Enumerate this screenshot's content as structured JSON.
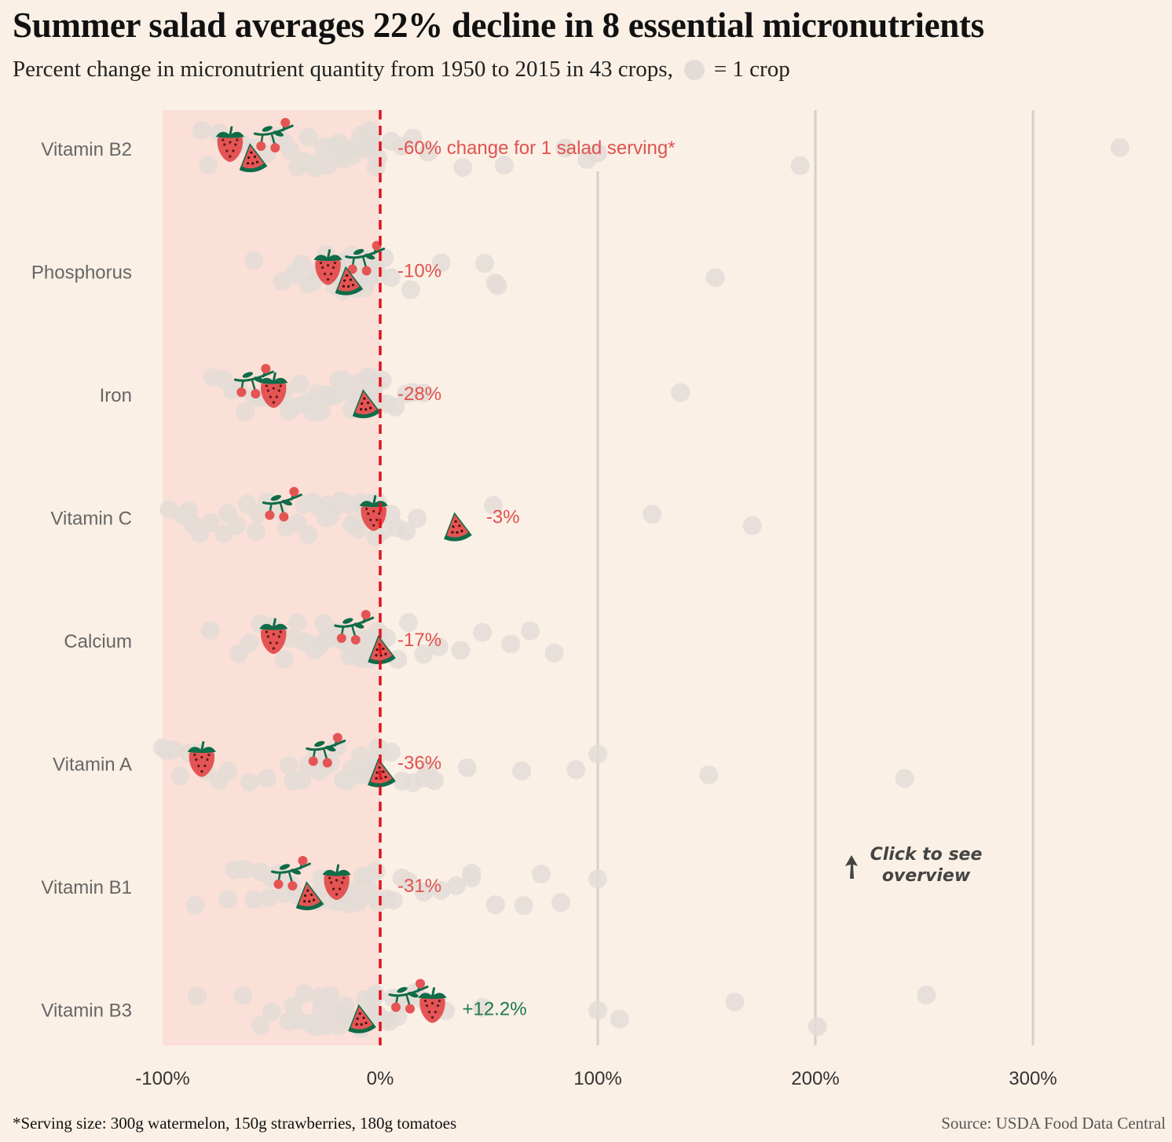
{
  "title": "Summer salad averages 22% decline in 8 essential micronutrients",
  "subtitle": {
    "text": "Percent change in micronutrient quantity from 1950 to 2015 in 43 crops,",
    "legend_text": "= 1 crop"
  },
  "footnote": "*Serving size: 300g watermelon, 150g strawberries, 180g tomatoes",
  "source": "Source: USDA Food Data Central",
  "hint": "Click to see overview",
  "colors": {
    "background": "#faf0e6",
    "decline_band": "#fbe0d8",
    "crop_dot": "#e3dcd6",
    "grid": "#d6d0ca",
    "zero_line": "#e0141e",
    "negative_label": "#e0524f",
    "positive_label": "#1a7a50",
    "strawberry": "#e55454",
    "leaf": "#0f6b48"
  },
  "chart_data": {
    "type": "scatter",
    "xlim": [
      -100,
      350
    ],
    "x_ticks": [
      -100,
      0,
      100,
      200,
      300
    ],
    "x_tick_labels": [
      "-100%",
      "0%",
      "100%",
      "200%",
      "300%"
    ],
    "zero_line": 0,
    "shaded_range": [
      -100,
      0
    ],
    "rows": [
      {
        "nutrient": "Vitamin B2",
        "salad_change": -60,
        "label": "-60% change for 1 salad serving*",
        "watermelon": -59,
        "strawberry": -69,
        "tomato": -49,
        "crops": [
          -82,
          -79,
          -74,
          -69,
          -63,
          -57,
          -52,
          -47,
          -44,
          -41,
          -38,
          -35,
          -33,
          -30,
          -28,
          -26,
          -24,
          -22,
          -20,
          -19,
          -17,
          -15,
          -13,
          -11,
          -9,
          -7,
          -6,
          -5,
          -4,
          -3,
          -2,
          -1,
          5,
          10,
          15,
          22,
          38,
          57,
          85,
          95,
          100,
          193,
          340
        ]
      },
      {
        "nutrient": "Phosphorus",
        "salad_change": -10,
        "label": "-10%",
        "watermelon": -15,
        "strawberry": -24,
        "tomato": -7,
        "crops": [
          -58,
          -45,
          -40,
          -38,
          -36,
          -33,
          -31,
          -29,
          -28,
          -26,
          -25,
          -24,
          -23,
          -22,
          -21,
          -20,
          -19,
          -18,
          -17,
          -16,
          -15,
          -14,
          -13,
          -12,
          -11,
          -10,
          -9,
          -8,
          -7,
          -6,
          -5,
          -4,
          -3,
          -2,
          -1,
          2,
          5,
          14,
          28,
          48,
          53,
          54,
          154
        ]
      },
      {
        "nutrient": "Iron",
        "salad_change": -28,
        "label": "-28%",
        "watermelon": -7,
        "strawberry": -49,
        "tomato": -58,
        "crops": [
          -77,
          -72,
          -68,
          -65,
          -62,
          -58,
          -55,
          -52,
          -50,
          -47,
          -44,
          -42,
          -40,
          -37,
          -35,
          -33,
          -31,
          -29,
          -27,
          -25,
          -23,
          -21,
          -19,
          -17,
          -15,
          -13,
          -11,
          -9,
          -8,
          -7,
          -6,
          -5,
          -4,
          -3,
          -2,
          -1,
          3,
          7,
          12,
          20,
          138,
          15,
          1
        ]
      },
      {
        "nutrient": "Vitamin C",
        "salad_change": -3,
        "label": "-3%",
        "watermelon": 35,
        "strawberry": -3,
        "tomato": -45,
        "crops": [
          -97,
          -91,
          -88,
          -83,
          -78,
          -72,
          -66,
          -61,
          -57,
          -52,
          -47,
          -43,
          -38,
          -35,
          -31,
          -28,
          -25,
          -23,
          -20,
          -18,
          -15,
          -12,
          -10,
          -8,
          -6,
          -4,
          -2,
          -1,
          2,
          5,
          8,
          12,
          17,
          52,
          125,
          171,
          -33,
          -24,
          -13,
          -56,
          -70,
          -86,
          -9
        ]
      },
      {
        "nutrient": "Calcium",
        "salad_change": -17,
        "label": "-17%",
        "watermelon": 0,
        "strawberry": -49,
        "tomato": -12,
        "crops": [
          -78,
          -65,
          -60,
          -55,
          -50,
          -47,
          -44,
          -41,
          -38,
          -35,
          -32,
          -30,
          -28,
          -26,
          -24,
          -22,
          -20,
          -18,
          -16,
          -14,
          -12,
          -10,
          -9,
          -8,
          -7,
          -6,
          -5,
          -4,
          -3,
          -2,
          -1,
          3,
          8,
          13,
          20,
          27,
          37,
          47,
          60,
          69,
          80,
          -25,
          -15
        ]
      },
      {
        "nutrient": "Vitamin A",
        "salad_change": -36,
        "label": "-36%",
        "watermelon": 0,
        "strawberry": -82,
        "tomato": -25,
        "crops": [
          -100,
          -98,
          -95,
          -92,
          -88,
          -84,
          -80,
          -74,
          -70,
          -60,
          -52,
          -42,
          -36,
          -33,
          -30,
          -28,
          -25,
          -23,
          -20,
          -17,
          -15,
          -13,
          -10,
          -8,
          -6,
          -4,
          -2,
          5,
          10,
          15,
          22,
          25,
          40,
          65,
          90,
          100,
          151,
          241,
          -40,
          -9,
          -1,
          20,
          -3
        ]
      },
      {
        "nutrient": "Vitamin B1",
        "salad_change": -31,
        "label": "-31%",
        "watermelon": -33,
        "strawberry": -20,
        "tomato": -41,
        "crops": [
          -85,
          -70,
          -67,
          -62,
          -58,
          -55,
          -50,
          -47,
          -44,
          -41,
          -38,
          -35,
          -32,
          -29,
          -26,
          -23,
          -21,
          -19,
          -16,
          -14,
          -12,
          -10,
          -8,
          -6,
          -4,
          -2,
          -1,
          3,
          6,
          10,
          13,
          20,
          28,
          35,
          42,
          42,
          53,
          66,
          74,
          83,
          100,
          -27,
          -51
        ]
      },
      {
        "nutrient": "Vitamin B3",
        "salad_change": 12.2,
        "label": "+12.2%",
        "watermelon": -9,
        "strawberry": 24,
        "tomato": 13,
        "crops": [
          -84,
          -63,
          -55,
          -50,
          -42,
          -40,
          -38,
          -35,
          -32,
          -30,
          -28,
          -25,
          -23,
          -21,
          -19,
          -17,
          -15,
          -13,
          -11,
          -9,
          -7,
          -5,
          -3,
          -2,
          -1,
          2,
          4,
          6,
          9,
          12,
          16,
          20,
          30,
          47,
          100,
          110,
          163,
          201,
          251,
          -27,
          -16,
          -4,
          8
        ]
      }
    ]
  }
}
